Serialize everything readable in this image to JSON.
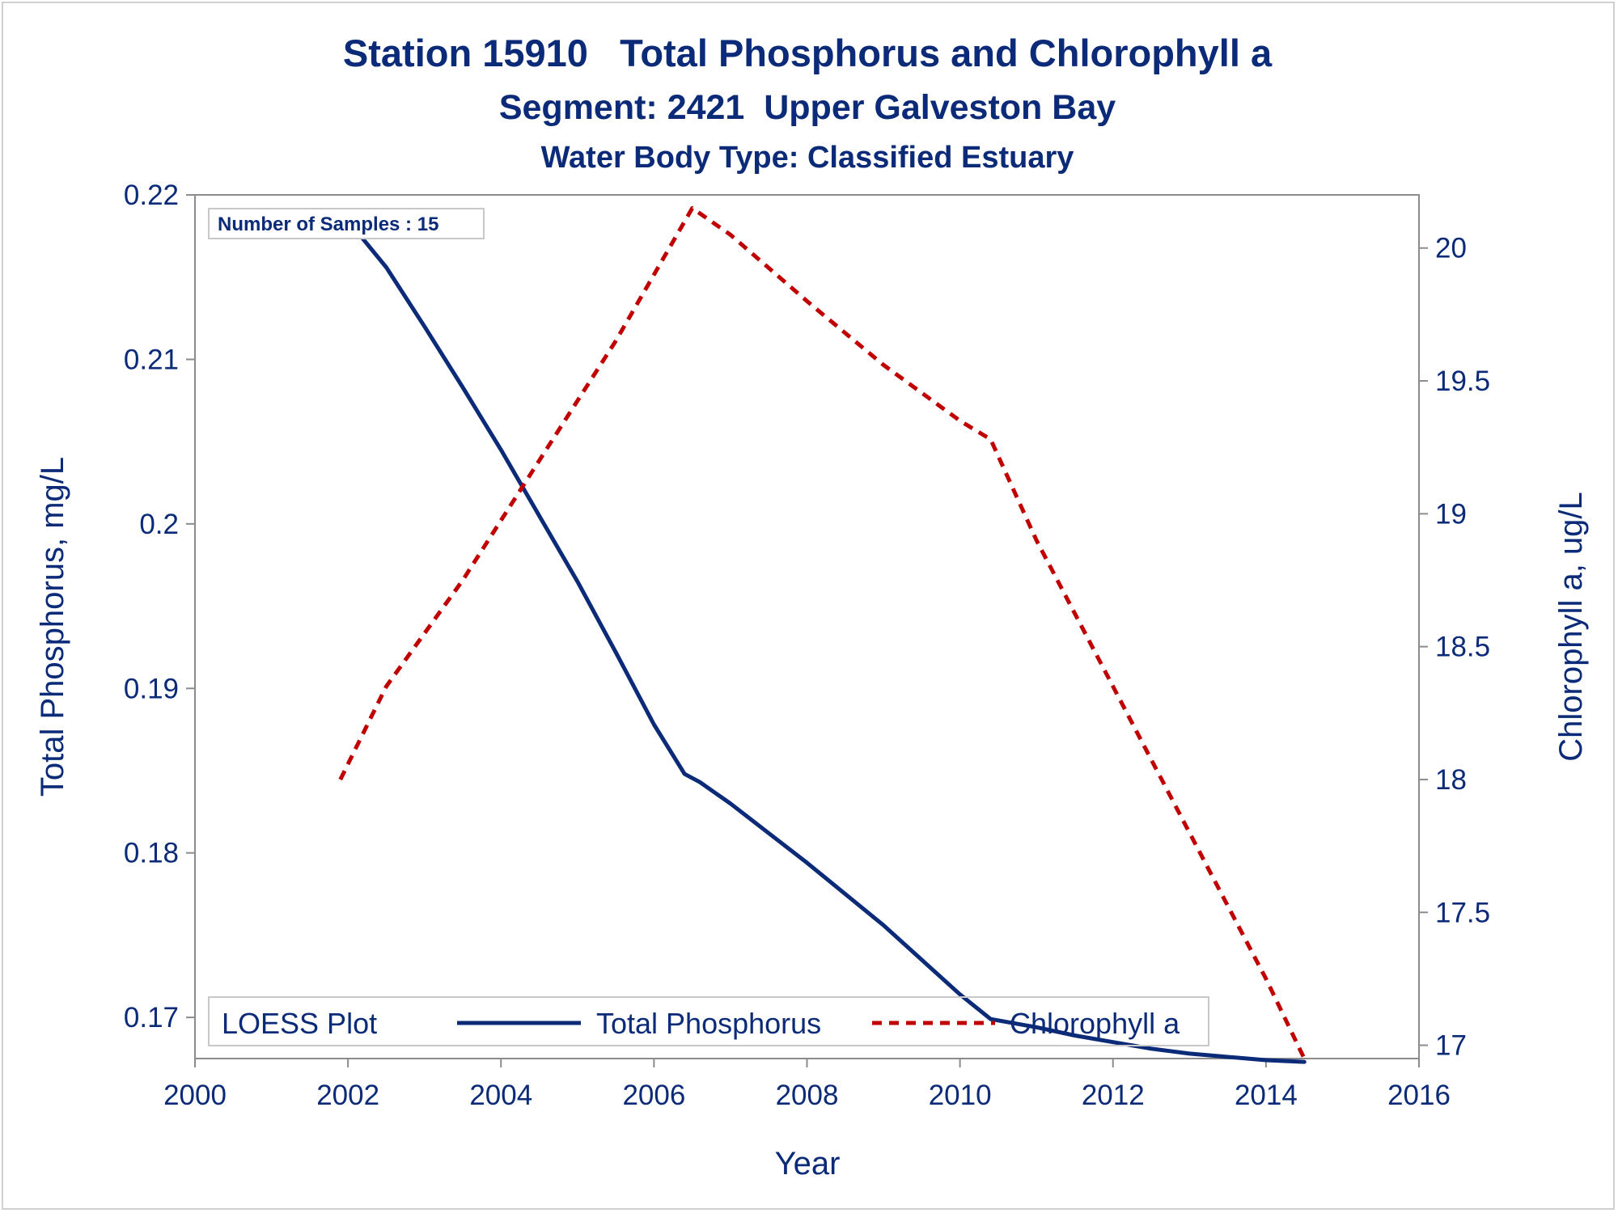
{
  "chart_data": {
    "type": "line",
    "title": "Station 15910   Total Phosphorus and Chlorophyll a",
    "subtitle": "Segment: 2421  Upper Galveston Bay",
    "subtitle2": "Water Body Type: Classified Estuary",
    "xlabel": "Year",
    "ylabel": "Total Phosphorus, mg/L",
    "y2label": "Chlorophyll a, ug/L",
    "xlim": [
      2000,
      2016
    ],
    "ylim": [
      0.1675,
      0.22
    ],
    "y2lim": [
      16.95,
      20.2
    ],
    "x_ticks": [
      "2000",
      "2002",
      "2004",
      "2006",
      "2008",
      "2010",
      "2012",
      "2014",
      "2016"
    ],
    "y_ticks": [
      "0.17",
      "0.18",
      "0.19",
      "0.2",
      "0.21",
      "0.22"
    ],
    "y2_ticks": [
      "17",
      "17.5",
      "18",
      "18.5",
      "19",
      "19.5",
      "20"
    ],
    "annotation": "Number of Samples : 15",
    "legend": {
      "title": "LOESS Plot",
      "position": "bottom-left (inside plot)"
    },
    "grid": false,
    "series": [
      {
        "name": "Total Phosphorus",
        "axis": "left",
        "color": "#0b2a78",
        "style": "solid",
        "x": [
          2001.9,
          2002.5,
          2003.0,
          2003.5,
          2004.0,
          2004.5,
          2005.0,
          2005.5,
          2006.0,
          2006.4,
          2006.6,
          2007.0,
          2007.5,
          2008.0,
          2008.5,
          2009.0,
          2009.5,
          2010.0,
          2010.4,
          2011.0,
          2011.5,
          2012.0,
          2012.5,
          2013.0,
          2013.5,
          2014.0,
          2014.5
        ],
        "y": [
          0.219,
          0.2156,
          0.212,
          0.2083,
          0.2045,
          0.2005,
          0.1965,
          0.1922,
          0.1878,
          0.1848,
          0.1843,
          0.183,
          0.1812,
          0.1794,
          0.1775,
          0.1756,
          0.1735,
          0.1714,
          0.1699,
          0.1694,
          0.1689,
          0.1685,
          0.1681,
          0.1678,
          0.1676,
          0.1674,
          0.1673
        ]
      },
      {
        "name": "Chlorophyll a",
        "axis": "right",
        "color": "#c00000",
        "style": "dashed",
        "x": [
          2001.9,
          2002.5,
          2003.5,
          2004.5,
          2005.5,
          2006.0,
          2006.5,
          2007.0,
          2008.0,
          2009.0,
          2010.0,
          2010.4,
          2011.0,
          2012.0,
          2013.0,
          2014.0,
          2014.5
        ],
        "y": [
          18.0,
          18.35,
          18.75,
          19.2,
          19.65,
          19.9,
          20.15,
          20.05,
          19.8,
          19.56,
          19.35,
          19.28,
          18.9,
          18.35,
          17.8,
          17.25,
          16.95
        ]
      }
    ]
  }
}
